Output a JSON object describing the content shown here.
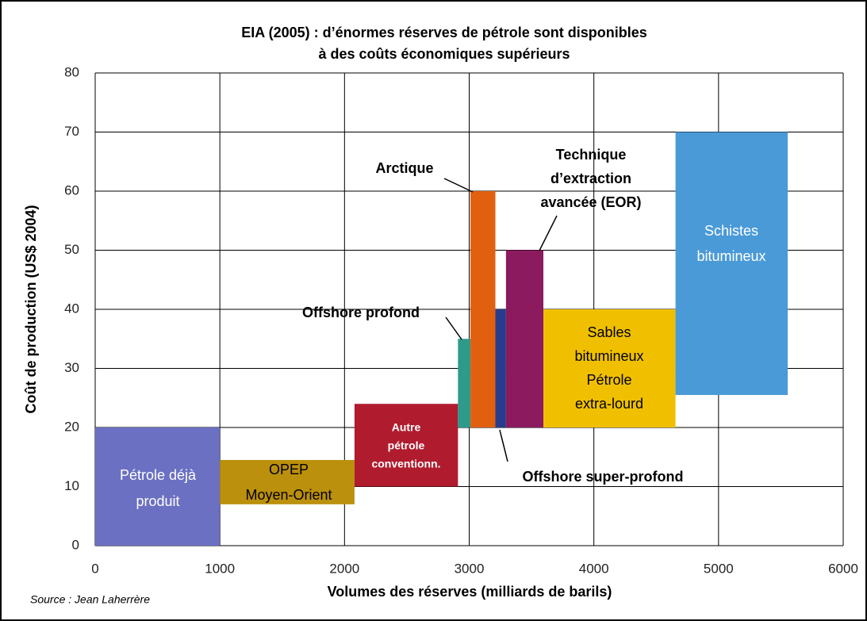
{
  "chart_data": {
    "type": "range-rect",
    "title": [
      "EIA (2005) : d’énormes réserves de pétrole sont disponibles",
      "à des coûts économiques supérieurs"
    ],
    "xlabel": "Volumes des réserves (milliards de barils)",
    "ylabel": "Coût de production (US$ 2004)",
    "source": "Source : Jean Laherrère",
    "xlim": [
      0,
      6000
    ],
    "xticks": [
      0,
      1000,
      2000,
      3000,
      4000,
      5000,
      6000
    ],
    "ylim": [
      0,
      80
    ],
    "yticks": [
      0,
      10,
      20,
      30,
      40,
      50,
      60,
      70,
      80
    ],
    "grid": true,
    "series": [
      {
        "label": [
          "Pétrole déjà",
          "produit"
        ],
        "color": "#6b70c2",
        "x": [
          0,
          1000
        ],
        "y": [
          0,
          20
        ]
      },
      {
        "label": [
          "OPEP",
          "Moyen-Orient"
        ],
        "color": "#bb900c",
        "x": [
          1000,
          2080
        ],
        "y": [
          7,
          14.5
        ]
      },
      {
        "label": [
          "Autre",
          "pétrole",
          "conventionn."
        ],
        "color": "#b01c2e",
        "x": [
          2080,
          2910
        ],
        "y": [
          10,
          24
        ]
      },
      {
        "label": [
          "Offshore profond"
        ],
        "color": "#2e9a8a",
        "x": [
          2910,
          3010
        ],
        "y": [
          20,
          35
        ]
      },
      {
        "label": [
          "Arctique"
        ],
        "color": "#e06010",
        "x": [
          3010,
          3210
        ],
        "y": [
          20,
          60
        ]
      },
      {
        "label": [
          "Offshore super-profond"
        ],
        "color": "#283c8c",
        "x": [
          3210,
          3295
        ],
        "y": [
          20,
          40
        ]
      },
      {
        "label": [
          "Technique",
          "d’extraction",
          "avancée (EOR)"
        ],
        "color": "#8b1a5e",
        "x": [
          3295,
          3595
        ],
        "y": [
          20,
          50
        ]
      },
      {
        "label": [
          "Sables",
          "bitumineux",
          "Pétrole",
          "extra-lourd"
        ],
        "color": "#f0c000",
        "x": [
          3595,
          4655
        ],
        "y": [
          20,
          40
        ]
      },
      {
        "label": [
          "Schistes",
          "bitumineux"
        ],
        "color": "#4a9ad8",
        "x": [
          4655,
          5555
        ],
        "y": [
          25.5,
          70
        ]
      }
    ]
  }
}
